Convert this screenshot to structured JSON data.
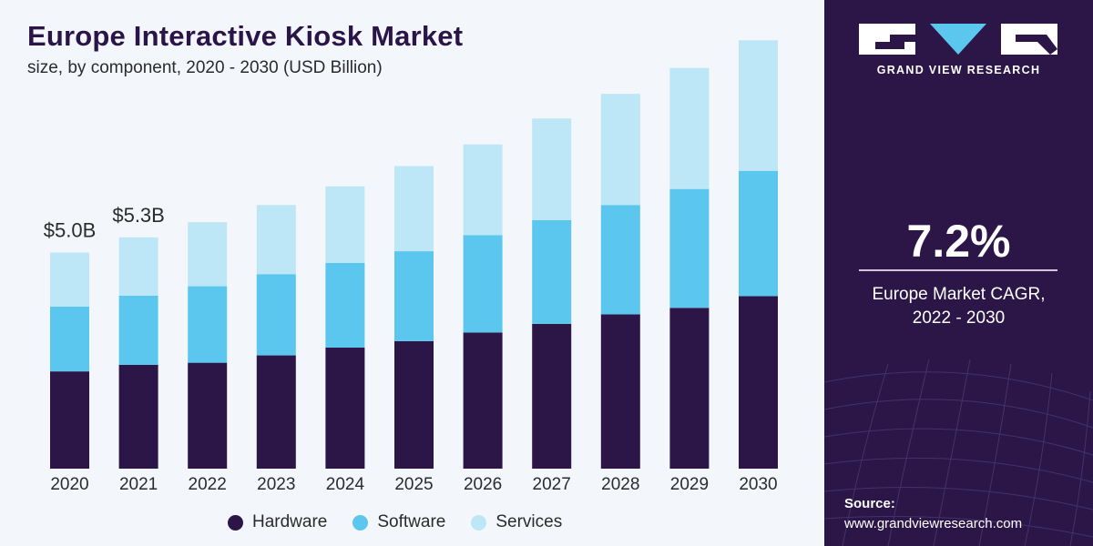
{
  "header": {
    "title": "Europe Interactive Kiosk Market",
    "subtitle": "size, by component, 2020 - 2030 (USD Billion)"
  },
  "colors": {
    "hardware": "#2c1648",
    "software": "#5bc7ee",
    "services": "#bde6f7",
    "panel": "#2c1648"
  },
  "chart_data": {
    "type": "bar",
    "stacked": true,
    "categories": [
      "2020",
      "2021",
      "2022",
      "2023",
      "2024",
      "2025",
      "2026",
      "2027",
      "2028",
      "2029",
      "2030"
    ],
    "series": [
      {
        "name": "Hardware",
        "values": [
          2.25,
          2.4,
          2.45,
          2.62,
          2.8,
          2.95,
          3.15,
          3.35,
          3.57,
          3.72,
          3.99
        ]
      },
      {
        "name": "Software",
        "values": [
          1.5,
          1.6,
          1.77,
          1.88,
          1.96,
          2.08,
          2.25,
          2.4,
          2.53,
          2.75,
          2.9
        ]
      },
      {
        "name": "Services",
        "values": [
          1.25,
          1.35,
          1.48,
          1.6,
          1.77,
          1.97,
          2.1,
          2.35,
          2.57,
          2.8,
          3.02
        ]
      }
    ],
    "data_labels": [
      {
        "category": "2020",
        "text": "$5.0B"
      },
      {
        "category": "2021",
        "text": "$5.3B"
      }
    ],
    "ylim": [
      0,
      10
    ],
    "legend": "bottom",
    "grid": false
  },
  "sidebar": {
    "brand": "GRAND VIEW RESEARCH",
    "cagr_value": "7.2%",
    "cagr_label_line1": "Europe Market CAGR,",
    "cagr_label_line2": "2022 - 2030",
    "source_label": "Source:",
    "source_url": "www.grandviewresearch.com"
  },
  "icons": {
    "logo": "gvr-logo"
  }
}
